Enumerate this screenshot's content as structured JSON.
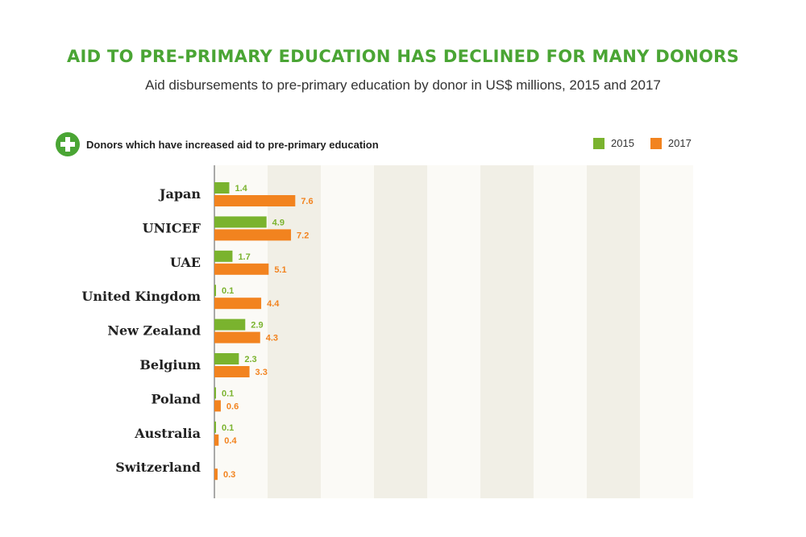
{
  "title": "AID TO PRE-PRIMARY EDUCATION HAS DECLINED FOR MANY DONORS",
  "subtitle": "Aid disbursements to pre-primary education by donor in US$ millions, 2015 and 2017",
  "callout": {
    "icon": "plus-icon",
    "text": "Donors which have increased aid to pre-primary education"
  },
  "colors": {
    "series_2015": "#7ab32e",
    "series_2017": "#f2831f",
    "band_light": "#fbfaf6",
    "band_dark": "#f1efe6"
  },
  "chart_data": {
    "type": "bar",
    "orientation": "horizontal",
    "categories": [
      "Japan",
      "UNICEF",
      "UAE",
      "United Kingdom",
      "New Zealand",
      "Belgium",
      "Poland",
      "Australia",
      "Switzerland"
    ],
    "series": [
      {
        "name": "2015",
        "color": "#7ab32e",
        "values": [
          1.4,
          4.9,
          1.7,
          0.1,
          2.9,
          2.3,
          0.1,
          0.1,
          0
        ],
        "labels": [
          "1.4",
          "4.9",
          "1.7",
          "0.1",
          "2.9",
          "2.3",
          "0.1",
          "0.1",
          ""
        ]
      },
      {
        "name": "2017",
        "color": "#f2831f",
        "values": [
          7.6,
          7.2,
          5.1,
          4.4,
          4.3,
          3.3,
          0.6,
          0.4,
          0.3
        ],
        "labels": [
          "7.6",
          "7.2",
          "5.1",
          "4.4",
          "4.3",
          "3.3",
          "0.6",
          "0.4",
          "0.3"
        ]
      }
    ],
    "xlim": [
      0,
      45
    ],
    "legend_position": "top-right",
    "grid": false
  }
}
